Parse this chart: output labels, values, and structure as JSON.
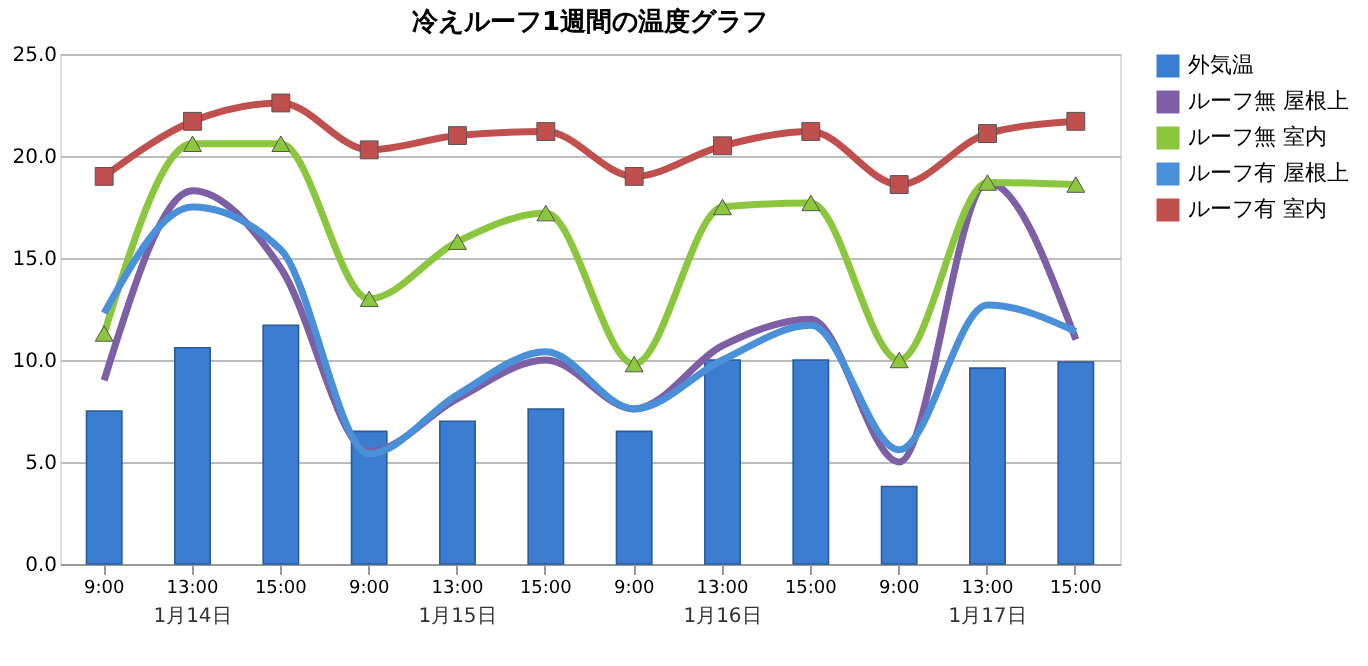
{
  "chart_data": {
    "type": "line",
    "title": "冷えルーフ1週間の温度グラフ",
    "categories": [
      "9:00",
      "13:00",
      "15:00",
      "9:00",
      "13:00",
      "15:00",
      "9:00",
      "13:00",
      "15:00",
      "9:00",
      "13:00",
      "15:00"
    ],
    "annotations": [
      "1月14日",
      "1月15日",
      "1月16日",
      "1月17日"
    ],
    "series": [
      {
        "name": "外気温",
        "type": "bar",
        "color": "#3b7dd0",
        "values": [
          7.5,
          10.6,
          11.7,
          6.5,
          7.0,
          7.6,
          6.5,
          10.0,
          10.0,
          3.8,
          9.6,
          9.9
        ]
      },
      {
        "name": "ルーフ無 屋根上",
        "marker": "none",
        "color": "#7d5fa6",
        "values": [
          9.0,
          18.3,
          14.5,
          5.5,
          8.1,
          10.0,
          7.6,
          10.7,
          12.0,
          5.0,
          18.7,
          11.0
        ]
      },
      {
        "name": "ルーフ無 室内",
        "marker": "triangle",
        "color": "#8cc63f",
        "values": [
          11.3,
          20.6,
          20.6,
          13.0,
          15.8,
          17.2,
          9.8,
          17.5,
          17.7,
          10.0,
          18.7,
          18.6
        ]
      },
      {
        "name": "ルーフ有 屋根上",
        "marker": "none",
        "color": "#4a90d9",
        "values": [
          12.3,
          17.5,
          15.4,
          5.4,
          8.3,
          10.4,
          7.6,
          10.0,
          11.7,
          5.6,
          12.7,
          11.4
        ]
      },
      {
        "name": "ルーフ有 室内",
        "marker": "square",
        "color": "#c0504d",
        "values": [
          19.0,
          21.7,
          22.6,
          20.3,
          21.0,
          21.2,
          19.0,
          20.5,
          21.2,
          18.6,
          21.1,
          21.7
        ]
      }
    ],
    "ylim": [
      0,
      25
    ],
    "yticks": [
      {
        "value": 0,
        "label": "0.0"
      },
      {
        "value": 5,
        "label": "5.0"
      },
      {
        "value": 10,
        "label": "10.0"
      },
      {
        "value": 15,
        "label": "15.0"
      },
      {
        "value": 20,
        "label": "20.0"
      },
      {
        "value": 25,
        "label": "25.0"
      }
    ],
    "grid": "y",
    "legend": "right"
  }
}
